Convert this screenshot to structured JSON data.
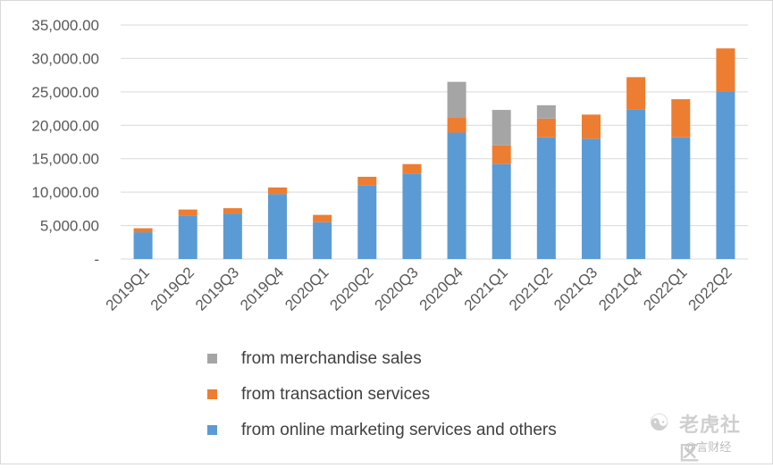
{
  "chart_data": {
    "type": "bar",
    "stacked": true,
    "categories": [
      "2019Q1",
      "2019Q2",
      "2019Q3",
      "2019Q4",
      "2020Q1",
      "2020Q2",
      "2020Q3",
      "2020Q4",
      "2021Q1",
      "2021Q2",
      "2021Q3",
      "2021Q4",
      "2022Q1",
      "2022Q2"
    ],
    "series": [
      {
        "name": "from online marketing services and others",
        "color": "#5b9bd5",
        "values": [
          4000,
          6500,
          6800,
          9700,
          5500,
          11000,
          12800,
          18900,
          14200,
          18200,
          18000,
          22400,
          18200,
          25100
        ]
      },
      {
        "name": "from transaction services",
        "color": "#ed7d31",
        "values": [
          600,
          900,
          800,
          1000,
          1100,
          1300,
          1400,
          2300,
          2800,
          2800,
          3600,
          4800,
          5700,
          6400
        ]
      },
      {
        "name": "from merchandise sales",
        "color": "#a5a5a5",
        "values": [
          0,
          0,
          0,
          0,
          0,
          0,
          0,
          5300,
          5300,
          2000,
          0,
          0,
          0,
          0
        ]
      }
    ],
    "y_ticks": [
      "-",
      "5,000.00",
      "10,000.00",
      "15,000.00",
      "20,000.00",
      "25,000.00",
      "30,000.00",
      "35,000.00"
    ],
    "ylim": [
      0,
      35000
    ],
    "grid": true,
    "legend_position": "bottom",
    "legend_order": [
      2,
      1,
      0
    ]
  },
  "watermark": {
    "logo_icon": "tiger-logo-icon",
    "main": "老虎社区",
    "sub": "@言财经"
  }
}
